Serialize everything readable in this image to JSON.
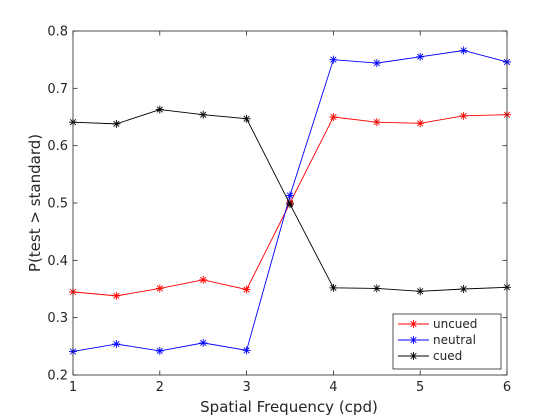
{
  "chart_data": {
    "type": "line",
    "xlabel": "Spatial Frequency (cpd)",
    "ylabel": "P(test > standard)",
    "xlim": [
      1,
      6
    ],
    "ylim": [
      0.2,
      0.8
    ],
    "xticks": [
      "1",
      "2",
      "3",
      "4",
      "5",
      "6"
    ],
    "yticks": [
      "0.2",
      "0.3",
      "0.4",
      "0.5",
      "0.6",
      "0.7",
      "0.8"
    ],
    "x": [
      1,
      1.5,
      2,
      2.5,
      3,
      3.5,
      4,
      4.5,
      5,
      5.5,
      6
    ],
    "grid": false,
    "marker": "asterisk",
    "legend_position": "bottom-right",
    "series": [
      {
        "name": "uncued",
        "color": "#ff0000",
        "values": [
          0.345,
          0.338,
          0.351,
          0.366,
          0.349,
          0.5,
          0.65,
          0.641,
          0.639,
          0.652,
          0.654
        ]
      },
      {
        "name": "neutral",
        "color": "#0000ff",
        "values": [
          0.241,
          0.254,
          0.242,
          0.256,
          0.243,
          0.513,
          0.75,
          0.744,
          0.755,
          0.766,
          0.746
        ]
      },
      {
        "name": "cued",
        "color": "#000000",
        "values": [
          0.641,
          0.638,
          0.663,
          0.654,
          0.647,
          0.498,
          0.352,
          0.351,
          0.346,
          0.35,
          0.353
        ]
      }
    ]
  }
}
